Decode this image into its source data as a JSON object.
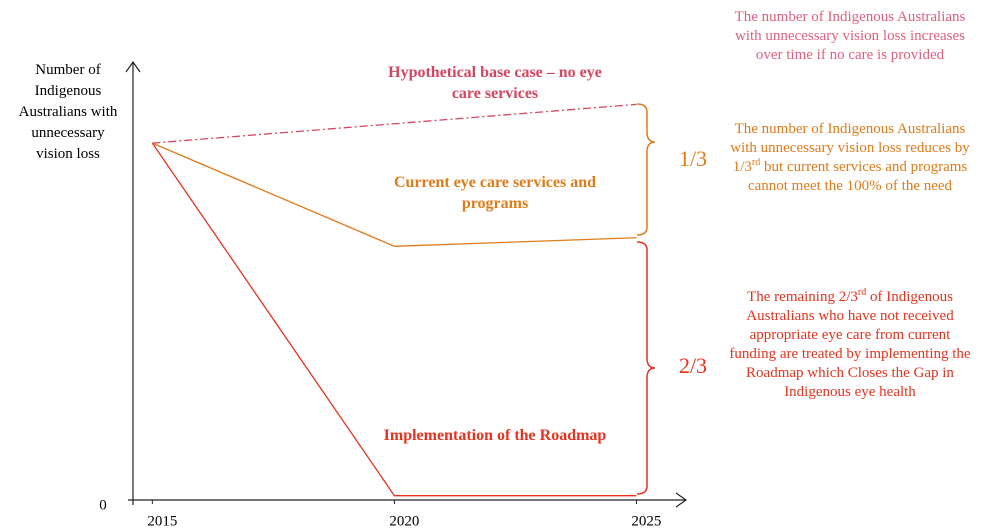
{
  "chart_data": {
    "type": "line",
    "y_label": "Number of Indigenous Australians with unnecessary vision loss",
    "xlim": [
      2014.6,
      2025.9
    ],
    "xticks": [
      2015,
      2020,
      2025
    ],
    "ylim": [
      0,
      100
    ],
    "yticks": [
      0
    ],
    "series": [
      {
        "name": "Hypothetical base case – no eye care services",
        "color": "#d64560",
        "style": "dashdot",
        "x": [
          2015,
          2025
        ],
        "values": [
          83,
          92
        ]
      },
      {
        "name": "Current eye care services and programs",
        "color": "#e07b1a",
        "style": "solid",
        "x": [
          2015,
          2020,
          2025
        ],
        "values": [
          83,
          59,
          61
        ]
      },
      {
        "name": "Implementation of the Roadmap",
        "color": "#e8321e",
        "style": "solid",
        "x": [
          2015,
          2020,
          2025
        ],
        "values": [
          83,
          1,
          1
        ]
      }
    ],
    "annotations": [
      {
        "text": [
          "The number of Indigenous Australians with unnecessary vision loss increases over time if no care is provided"
        ],
        "color": "#e0607e"
      },
      {
        "text": [
          "The number of Indigenous Australians with unnecessary vision loss reduces by 1/3",
          "rd",
          " but current services and programs cannot meet the 100% of the need"
        ],
        "color": "#e07b1a"
      },
      {
        "text": [
          "The remaining 2/3",
          "rd",
          " of Indigenous Australians who have not received appropriate eye care from current funding are treated by implementing the Roadmap which Closes the Gap in Indigenous eye health"
        ],
        "color": "#e8321e"
      }
    ],
    "brackets": [
      "1/3",
      "2/3"
    ]
  }
}
